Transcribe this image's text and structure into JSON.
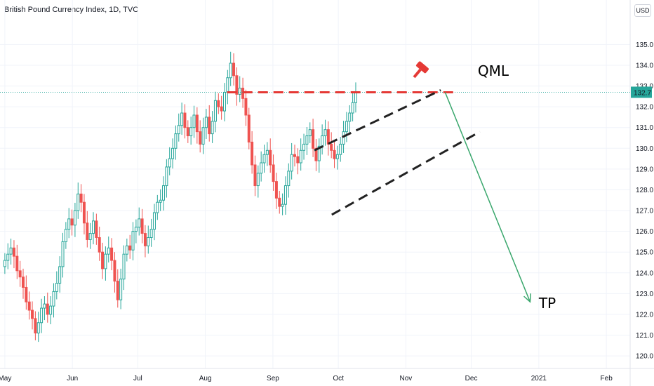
{
  "chart_data": {
    "type": "candlestick",
    "title": "British Pound Currency Index, 1D, TVC",
    "currency": "USD",
    "ylim": [
      119.8,
      135.5
    ],
    "y_ticks": [
      120.0,
      121.0,
      122.0,
      123.0,
      124.0,
      125.0,
      126.0,
      127.0,
      128.0,
      129.0,
      130.0,
      131.0,
      132.0,
      133.0,
      134.0,
      135.0
    ],
    "y_tick_labels": [
      "120.0",
      "121.0",
      "122.0",
      "123.0",
      "124.0",
      "125.0",
      "126.0",
      "127.0",
      "128.0",
      "129.0",
      "130.0",
      "131.0",
      "132.0",
      "133.0",
      "134.0",
      "135.0"
    ],
    "x_ticks": [
      {
        "label": "May",
        "day": 0
      },
      {
        "label": "Jun",
        "day": 31
      },
      {
        "label": "Jul",
        "day": 61
      },
      {
        "label": "Aug",
        "day": 92
      },
      {
        "label": "Sep",
        "day": 123
      },
      {
        "label": "Oct",
        "day": 153
      },
      {
        "label": "Nov",
        "day": 184
      },
      {
        "label": "Dec",
        "day": 214
      },
      {
        "label": "2021",
        "day": 245
      },
      {
        "label": "Feb",
        "day": 276
      }
    ],
    "last_price": 132.7,
    "last_price_label": "132.7",
    "candles_close": [
      124.6,
      124.9,
      125.2,
      124.8,
      124.1,
      123.8,
      123.3,
      122.6,
      122.2,
      121.8,
      121.1,
      121.6,
      122.3,
      122.5,
      122.0,
      122.4,
      123.1,
      123.5,
      124.3,
      125.5,
      126.1,
      126.6,
      126.3,
      127.0,
      127.8,
      127.4,
      126.4,
      125.6,
      125.9,
      126.5,
      125.7,
      125.0,
      124.2,
      124.9,
      125.2,
      124.6,
      123.6,
      122.7,
      123.7,
      124.9,
      125.3,
      125.1,
      126.0,
      126.2,
      126.6,
      125.9,
      125.3,
      125.7,
      126.1,
      126.9,
      127.4,
      127.5,
      128.2,
      129.1,
      129.5,
      130.0,
      130.7,
      131.1,
      131.7,
      131.0,
      130.6,
      131.0,
      131.6,
      130.8,
      130.2,
      131.0,
      131.5,
      130.7,
      131.3,
      132.3,
      132.0,
      131.8,
      132.7,
      133.4,
      134.1,
      133.5,
      132.6,
      132.9,
      132.4,
      131.6,
      130.3,
      129.2,
      128.2,
      128.8,
      129.3,
      129.7,
      129.9,
      129.2,
      128.4,
      127.6,
      127.2,
      127.3,
      128.2,
      128.9,
      129.7,
      129.6,
      129.3,
      129.9,
      130.2,
      130.6,
      130.9,
      130.0,
      129.4,
      130.1,
      130.6,
      130.9,
      130.2,
      129.9,
      129.5,
      129.7,
      130.2,
      130.8,
      131.3,
      131.7,
      132.2,
      132.7
    ],
    "qml_level": 132.7,
    "qml_start_day": 102,
    "qml_end_day": 206,
    "channel_upper": {
      "from": {
        "day": 142,
        "value": 129.9
      },
      "to": {
        "day": 200,
        "value": 132.8
      }
    },
    "channel_lower": {
      "from": {
        "day": 150,
        "value": 126.8
      },
      "to": {
        "day": 218,
        "value": 130.8
      }
    },
    "target_arrow": {
      "from": {
        "day": 202,
        "value": 132.7
      },
      "to": {
        "day": 241,
        "value": 122.6
      }
    },
    "annotations": [
      {
        "text": "QML",
        "day": 217,
        "value": 133.5
      },
      {
        "text": "TP",
        "day": 245,
        "value": 122.3
      }
    ]
  }
}
